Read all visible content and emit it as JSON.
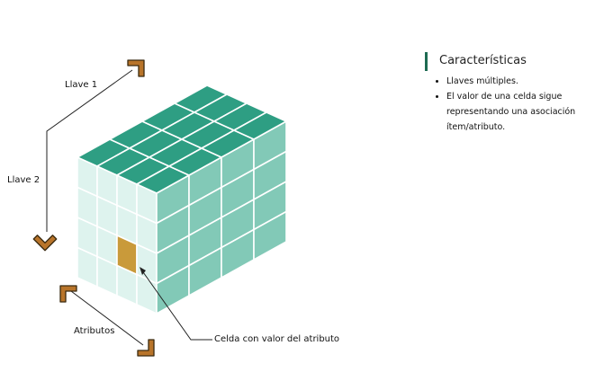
{
  "labels": {
    "key1": "Llave 1",
    "key2": "Llave 2",
    "attributes": "Atributos",
    "cell": "Celda con valor del atributo"
  },
  "panel": {
    "title": "Características",
    "items": [
      "Llaves múltiples.",
      "El valor de una celda sigue representando una asociación ítem/atributo."
    ]
  },
  "colors": {
    "top": "#2e9e83",
    "front": "#def3ee",
    "side": "#82c9b7",
    "highlight": "#c99a3a",
    "arrow_fill": "#b8742a",
    "arrow_outline": "#3a2a10",
    "accent_bar": "#1e6b52"
  },
  "cube": {
    "size": 4
  }
}
